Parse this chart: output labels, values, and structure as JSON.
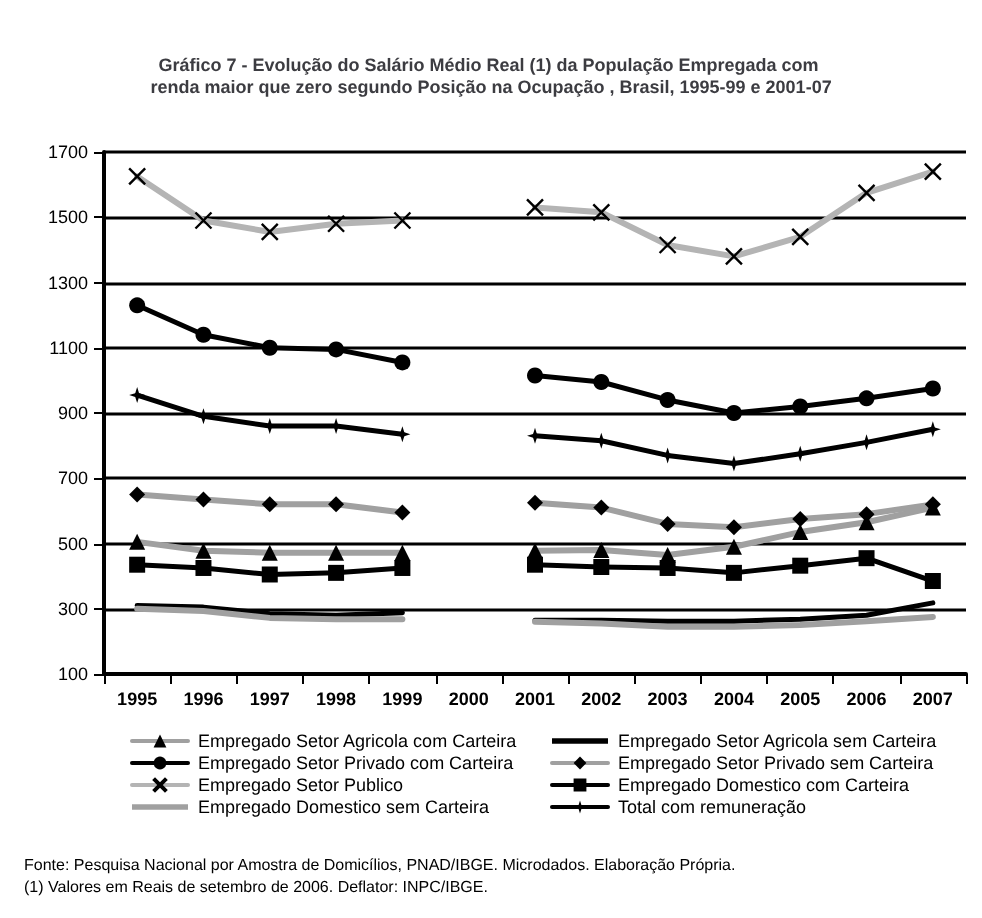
{
  "chart_data": {
    "type": "line",
    "title": "Gráfico 7 - Evolução do Salário Médio Real (1) da População Empregada com renda maior que zero segundo Posição na Ocupação , Brasil, 1995-99 e 2001-07",
    "categories": [
      "1995",
      "1996",
      "1997",
      "1998",
      "1999",
      "2000",
      "2001",
      "2002",
      "2003",
      "2004",
      "2005",
      "2006",
      "2007"
    ],
    "ylim": [
      100,
      1700
    ],
    "yticks": [
      100,
      300,
      500,
      700,
      900,
      1100,
      1300,
      1500,
      1700
    ],
    "grid": "y",
    "legend": "bottom",
    "line_style": "solid",
    "series": [
      {
        "name": "Empregado Setor Agricola com Carteira",
        "color": "#a0a0a0",
        "marker": "triangle",
        "values": [
          505,
          478,
          472,
          472,
          472,
          null,
          478,
          480,
          465,
          490,
          535,
          565,
          610
        ]
      },
      {
        "name": "Empregado Setor Agricola sem Carteira",
        "color": "#000000",
        "marker": "none",
        "values": [
          310,
          305,
          285,
          280,
          288,
          null,
          265,
          265,
          262,
          262,
          268,
          280,
          318
        ]
      },
      {
        "name": "Empregado Setor Privado com Carteira",
        "color": "#000000",
        "marker": "circle",
        "values": [
          1230,
          1140,
          1100,
          1095,
          1055,
          null,
          1015,
          995,
          940,
          900,
          920,
          945,
          975
        ]
      },
      {
        "name": "Empregado Setor Privado sem Carteira",
        "color": "#a0a0a0",
        "marker": "diamond",
        "values": [
          650,
          635,
          620,
          620,
          595,
          null,
          625,
          610,
          560,
          550,
          575,
          590,
          620
        ]
      },
      {
        "name": "Empregado Setor Publico",
        "color": "#b4b4b4",
        "marker": "cross",
        "values": [
          1625,
          1490,
          1455,
          1480,
          1490,
          null,
          1530,
          1515,
          1415,
          1380,
          1440,
          1575,
          1640
        ]
      },
      {
        "name": "Empregado Domestico com Carteira",
        "color": "#000000",
        "marker": "square",
        "values": [
          435,
          425,
          405,
          410,
          425,
          null,
          435,
          428,
          425,
          410,
          432,
          455,
          385
        ]
      },
      {
        "name": "Empregado Domestico sem Carteira",
        "color": "#a0a0a0",
        "marker": "none",
        "values": [
          300,
          293,
          272,
          268,
          268,
          null,
          260,
          255,
          245,
          245,
          250,
          262,
          275
        ]
      },
      {
        "name": "Total com remuneração",
        "color": "#000000",
        "marker": "star",
        "values": [
          955,
          890,
          860,
          860,
          835,
          null,
          830,
          815,
          770,
          745,
          775,
          810,
          850
        ]
      }
    ],
    "annotations": [
      "Fonte: Pesquisa Nacional por Amostra de Domicílios, PNAD/IBGE. Microdados. Elaboração Própria.",
      "(1) Valores em Reais de setembro de 2006. Deflator: INPC/IBGE."
    ]
  }
}
